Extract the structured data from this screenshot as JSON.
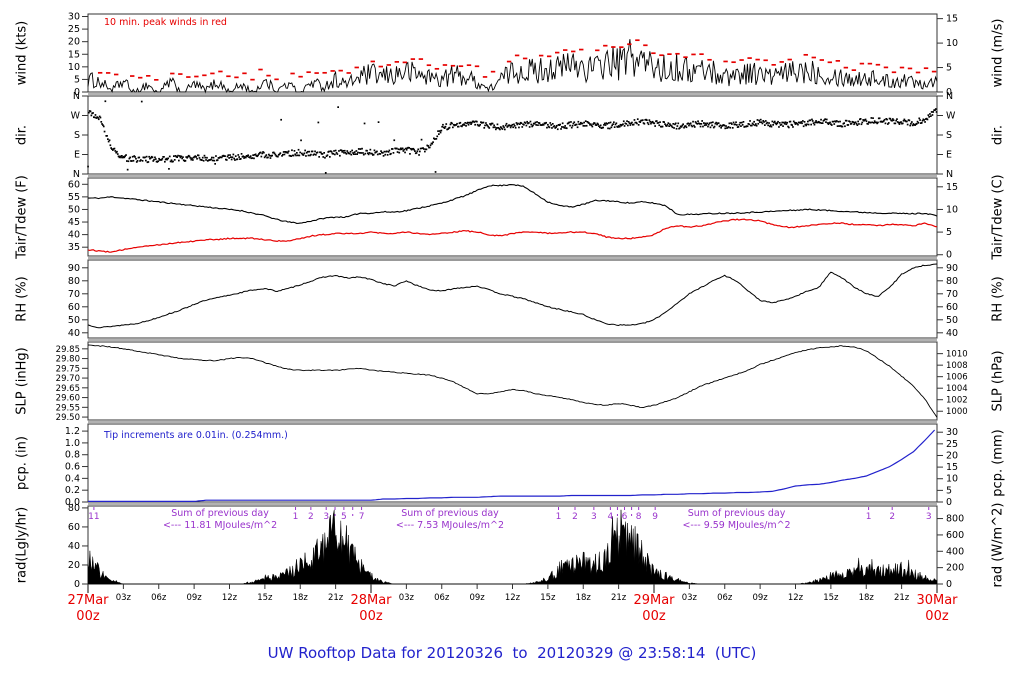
{
  "title": {
    "text": "UW Rooftop Data for 20120326  to  20120329 @ 23:58:14  (UTC)",
    "color": "#2222cc"
  },
  "colors": {
    "background": "#ffffff",
    "frame": "#333333",
    "series_black": "#000000",
    "red": "#e60000",
    "blue": "#2222cc",
    "purple": "#9933cc"
  },
  "xaxis": {
    "hours_total": 72,
    "minor_step_hours": 3,
    "minor_labels": [
      "03z",
      "06z",
      "09z",
      "12z",
      "15z",
      "18z",
      "21z"
    ],
    "days": [
      {
        "date": "27Mar",
        "time": "00z"
      },
      {
        "date": "28Mar",
        "time": "00z"
      },
      {
        "date": "29Mar",
        "time": "00z"
      },
      {
        "date": "30Mar",
        "time": "00z"
      }
    ],
    "day_label_color": "#e60000"
  },
  "chart_data": [
    {
      "id": "wind",
      "type": "line",
      "label_left": "wind (kts)",
      "label_right": "wind (m/s)",
      "ylim": [
        0,
        31
      ],
      "yticks_left": {
        "values": [
          0,
          5,
          10,
          15,
          20,
          25,
          30
        ],
        "labels": [
          "0",
          "5",
          "10",
          "15",
          "20",
          "25",
          "30"
        ]
      },
      "yticks_right": {
        "values": [
          0,
          5,
          10,
          15
        ],
        "labels": [
          "0",
          "5",
          "10",
          "15"
        ],
        "inverse": "ms2kts"
      },
      "annotation": {
        "text": "10 min. peak winds in red",
        "color": "#e60000"
      },
      "x_unit": "hours since 27Mar 00z, step 1h",
      "series_color": "#000000",
      "peaks_color": "#e60000",
      "values": [
        5,
        4,
        1,
        4,
        0,
        3,
        0,
        4,
        0,
        3,
        1,
        4,
        0,
        3,
        0,
        4,
        1,
        3,
        0,
        4,
        2,
        5,
        3,
        6,
        7,
        6,
        7,
        8,
        7,
        6,
        5,
        7,
        6,
        4,
        1,
        5,
        8,
        9,
        8,
        10,
        9,
        11,
        10,
        9,
        12,
        11,
        14,
        12,
        10,
        9,
        10,
        8,
        9,
        8,
        6,
        7,
        8,
        7,
        6,
        7,
        8,
        9,
        8,
        7,
        6,
        5,
        6,
        5,
        4,
        5,
        4,
        4,
        5
      ]
    },
    {
      "id": "dir",
      "type": "scatter",
      "label_left": "dir.",
      "label_right": "dir.",
      "ylim": [
        0,
        360
      ],
      "yticks_left": {
        "values": [
          0,
          90,
          180,
          270,
          360
        ],
        "labels": [
          "N",
          "E",
          "S",
          "W",
          "N"
        ]
      },
      "yticks_right": {
        "values": [
          0,
          90,
          180,
          270,
          360
        ],
        "labels": [
          "N",
          "E",
          "S",
          "W",
          "N"
        ],
        "inverse": "ident"
      },
      "series_color": "#000000",
      "values": [
        285,
        265,
        120,
        75,
        70,
        68,
        65,
        70,
        72,
        75,
        72,
        70,
        75,
        80,
        85,
        90,
        85,
        95,
        100,
        92,
        88,
        95,
        100,
        105,
        100,
        95,
        105,
        110,
        100,
        130,
        215,
        225,
        228,
        230,
        225,
        215,
        222,
        228,
        230,
        225,
        220,
        228,
        232,
        228,
        222,
        230,
        238,
        242,
        235,
        228,
        222,
        228,
        232,
        226,
        220,
        226,
        232,
        238,
        232,
        226,
        230,
        236,
        242,
        238,
        232,
        238,
        244,
        248,
        244,
        240,
        236,
        252,
        300
      ]
    },
    {
      "id": "temp",
      "type": "line",
      "label_left": "Tair/Tdew (F)",
      "label_right": "Tair/Tdew (C)",
      "ylim": [
        31.5,
        62.5
      ],
      "yticks_left": {
        "values": [
          35,
          40,
          45,
          50,
          55,
          60
        ],
        "labels": [
          "35",
          "40",
          "45",
          "50",
          "55",
          "60"
        ]
      },
      "yticks_right": {
        "values": [
          0,
          5,
          10,
          15
        ],
        "labels": [
          "0",
          "5",
          "10",
          "15"
        ],
        "inverse": "c2f"
      },
      "series": [
        {
          "name": "Tair",
          "color": "#000000",
          "values": [
            54.5,
            54.5,
            55,
            54.5,
            54,
            53.5,
            53,
            52.5,
            52,
            51.5,
            51,
            50.5,
            50,
            49.5,
            48.5,
            47.5,
            46,
            45,
            44.5,
            45.5,
            46.5,
            47,
            47,
            48.5,
            48.5,
            49,
            49,
            49.5,
            50.5,
            51.5,
            52.5,
            54,
            55.5,
            57.5,
            59.5,
            59.5,
            60,
            59,
            56,
            53,
            51.5,
            51,
            52,
            53.5,
            53.5,
            53,
            52.5,
            53,
            52.5,
            51.5,
            48,
            48,
            48.2,
            48.4,
            48.5,
            48.6,
            48.8,
            49,
            49.2,
            49.5,
            49.7,
            50,
            49.8,
            49.5,
            49.3,
            49,
            48.8,
            48.6,
            48.5,
            48.4,
            48.3,
            48.5,
            47.5
          ]
        },
        {
          "name": "Tdew",
          "color": "#e60000",
          "values": [
            34,
            33.5,
            33,
            34,
            35,
            35.5,
            36,
            36.5,
            37,
            37.5,
            38,
            38,
            38.5,
            38.5,
            38.5,
            38,
            37.5,
            37.5,
            38.5,
            39.5,
            40,
            40.5,
            40.5,
            40.5,
            41,
            40.5,
            40.5,
            41,
            40.5,
            40,
            40.5,
            41,
            41.5,
            41,
            40,
            39.5,
            40.5,
            41,
            41,
            40.5,
            40.5,
            41,
            41,
            40.5,
            39,
            38.5,
            38.5,
            39,
            40,
            42.5,
            43.5,
            43,
            43.5,
            44.5,
            45.5,
            46,
            46,
            45.5,
            44,
            43,
            43,
            43.5,
            44,
            44.5,
            44.5,
            44,
            44,
            43.5,
            44,
            44,
            43.5,
            44.5,
            43
          ]
        }
      ]
    },
    {
      "id": "rh",
      "type": "line",
      "label_left": "RH (%)",
      "label_right": "RH (%)",
      "ylim": [
        36,
        96
      ],
      "yticks_left": {
        "values": [
          40,
          50,
          60,
          70,
          80,
          90
        ],
        "labels": [
          "40",
          "50",
          "60",
          "70",
          "80",
          "90"
        ]
      },
      "yticks_right": {
        "values": [
          40,
          50,
          60,
          70,
          80,
          90
        ],
        "labels": [
          "40",
          "50",
          "60",
          "70",
          "80",
          "90"
        ],
        "inverse": "ident"
      },
      "series_color": "#000000",
      "values": [
        46,
        44,
        45,
        46,
        47,
        49,
        52,
        55,
        58,
        62,
        65,
        67,
        69,
        71,
        73,
        74,
        72,
        74,
        77,
        80,
        83,
        84,
        82,
        83,
        81,
        78,
        76,
        80,
        76,
        73,
        72,
        74,
        75,
        76,
        73,
        70,
        68,
        66,
        63,
        60,
        58,
        56,
        54,
        50,
        47,
        46,
        46,
        47,
        50,
        56,
        63,
        70,
        75,
        80,
        84,
        80,
        72,
        65,
        63,
        65,
        68,
        72,
        75,
        87,
        82,
        75,
        70,
        68,
        75,
        85,
        90,
        92,
        93
      ]
    },
    {
      "id": "slp",
      "type": "line",
      "label_left": "SLP (inHg)",
      "label_right": "SLP (hPa)",
      "ylim": [
        29.485,
        29.885
      ],
      "yticks_left": {
        "values": [
          29.5,
          29.55,
          29.6,
          29.65,
          29.7,
          29.75,
          29.8,
          29.85
        ],
        "labels": [
          "29.50",
          "29.55",
          "29.60",
          "29.65",
          "29.70",
          "29.75",
          "29.80",
          "29.85"
        ]
      },
      "yticks_right": {
        "values": [
          1000,
          1002,
          1004,
          1006,
          1008,
          1010
        ],
        "labels": [
          "1000",
          "1002",
          "1004",
          "1006",
          "1008",
          "1010"
        ],
        "inverse": "hpa2inhg"
      },
      "series_color": "#000000",
      "values": [
        29.87,
        29.865,
        29.86,
        29.85,
        29.84,
        29.83,
        29.82,
        29.81,
        29.8,
        29.795,
        29.79,
        29.79,
        29.8,
        29.805,
        29.8,
        29.78,
        29.76,
        29.745,
        29.74,
        29.74,
        29.74,
        29.74,
        29.745,
        29.75,
        29.74,
        29.735,
        29.73,
        29.725,
        29.72,
        29.715,
        29.7,
        29.68,
        29.65,
        29.62,
        29.62,
        29.63,
        29.64,
        29.635,
        29.62,
        29.61,
        29.6,
        29.59,
        29.575,
        29.565,
        29.56,
        29.57,
        29.56,
        29.55,
        29.56,
        29.58,
        29.6,
        29.63,
        29.66,
        29.68,
        29.7,
        29.72,
        29.74,
        29.77,
        29.79,
        29.81,
        29.83,
        29.845,
        29.855,
        29.86,
        29.865,
        29.86,
        29.84,
        29.8,
        29.76,
        29.71,
        29.66,
        29.59,
        29.5
      ]
    },
    {
      "id": "pcp",
      "type": "line",
      "label_left": "pcp. (in)",
      "label_right": "pcp. (mm)",
      "ylim": [
        0,
        1.32
      ],
      "yticks_left": {
        "values": [
          0.0,
          0.2,
          0.4,
          0.6,
          0.8,
          1.0,
          1.2
        ],
        "labels": [
          "0.0",
          "0.2",
          "0.4",
          "0.6",
          "0.8",
          "1.0",
          "1.2"
        ]
      },
      "yticks_right": {
        "values": [
          0,
          5,
          10,
          15,
          20,
          25,
          30
        ],
        "labels": [
          "0",
          "5",
          "10",
          "15",
          "20",
          "25",
          "30"
        ],
        "inverse": "mm2in"
      },
      "annotation": {
        "text": "Tip increments are 0.01in. (0.254mm.)",
        "color": "#2222cc"
      },
      "series_color": "#2222cc",
      "values": [
        0.01,
        0.01,
        0.01,
        0.01,
        0.01,
        0.01,
        0.01,
        0.01,
        0.01,
        0.01,
        0.03,
        0.03,
        0.03,
        0.03,
        0.03,
        0.03,
        0.03,
        0.03,
        0.03,
        0.03,
        0.03,
        0.03,
        0.03,
        0.03,
        0.03,
        0.05,
        0.05,
        0.06,
        0.06,
        0.07,
        0.07,
        0.08,
        0.08,
        0.08,
        0.09,
        0.1,
        0.1,
        0.1,
        0.1,
        0.1,
        0.1,
        0.11,
        0.11,
        0.11,
        0.11,
        0.11,
        0.11,
        0.12,
        0.12,
        0.13,
        0.13,
        0.14,
        0.14,
        0.15,
        0.15,
        0.16,
        0.16,
        0.17,
        0.18,
        0.22,
        0.27,
        0.29,
        0.3,
        0.33,
        0.37,
        0.4,
        0.44,
        0.52,
        0.6,
        0.72,
        0.85,
        1.05,
        1.26
      ]
    },
    {
      "id": "rad",
      "type": "area",
      "label_left": "rad(Lgly/hr)",
      "label_right": "rad (W/m^2)",
      "ylim": [
        0,
        82
      ],
      "yticks_left": {
        "values": [
          0,
          20,
          40,
          60,
          80
        ],
        "labels": [
          "0",
          "20",
          "40",
          "60",
          "80"
        ]
      },
      "yticks_right": {
        "values": [
          0,
          200,
          400,
          600,
          800
        ],
        "labels": [
          "0",
          "200",
          "400",
          "600",
          "800"
        ],
        "inverse": "wm2lgly"
      },
      "series_color": "#000000",
      "annotation_color": "#9933cc",
      "sum_labels": [
        {
          "line1": "Sum of previous day",
          "line2": "<--- 11.81 MJoules/m^2",
          "h": 11.2
        },
        {
          "line1": "Sum of previous day",
          "line2": "<--- 7.53 MJoules/m^2",
          "h": 30.7
        },
        {
          "line1": "Sum of previous day",
          "line2": "<--- 9.59 MJoules/m^2",
          "h": 55.0
        }
      ],
      "milestones": [
        {
          "h": 0.5,
          "label": "11"
        },
        {
          "h": 17.6,
          "label": "1"
        },
        {
          "h": 18.9,
          "label": "2"
        },
        {
          "h": 20.2,
          "label": "3"
        },
        {
          "h": 20.95,
          "label": ""
        },
        {
          "h": 21.7,
          "label": "5"
        },
        {
          "h": 22.45,
          "label": ""
        },
        {
          "h": 23.2,
          "label": "7"
        },
        {
          "h": 39.9,
          "label": "1"
        },
        {
          "h": 41.3,
          "label": "2"
        },
        {
          "h": 42.9,
          "label": "3"
        },
        {
          "h": 44.3,
          "label": "4"
        },
        {
          "h": 44.9,
          "label": ""
        },
        {
          "h": 45.5,
          "label": "6"
        },
        {
          "h": 46.1,
          "label": ""
        },
        {
          "h": 46.7,
          "label": "8"
        },
        {
          "h": 48.1,
          "label": "9"
        },
        {
          "h": 66.2,
          "label": "1"
        },
        {
          "h": 68.2,
          "label": "2"
        },
        {
          "h": 71.3,
          "label": "3"
        }
      ],
      "values": [
        30,
        12,
        3,
        0,
        0,
        0,
        0,
        0,
        0,
        0,
        0,
        0,
        0,
        0,
        2,
        5,
        8,
        12,
        18,
        25,
        35,
        55,
        40,
        18,
        8,
        2,
        0,
        0,
        0,
        0,
        0,
        0,
        0,
        0,
        0,
        0,
        0,
        0,
        2,
        6,
        15,
        20,
        22,
        20,
        25,
        55,
        45,
        30,
        12,
        8,
        4,
        1,
        0,
        0,
        0,
        0,
        0,
        0,
        0,
        0,
        0,
        1,
        4,
        8,
        10,
        12,
        13,
        14,
        13,
        14,
        10,
        7,
        5
      ]
    }
  ]
}
